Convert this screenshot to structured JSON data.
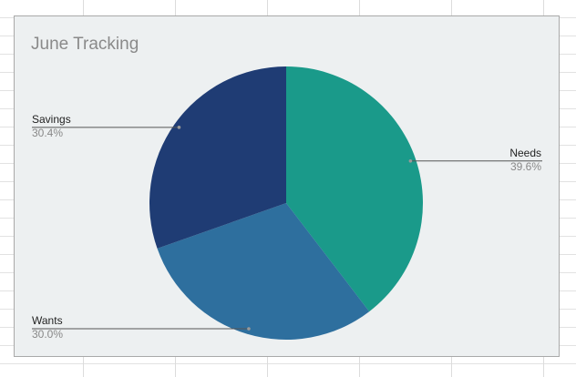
{
  "chart_data": {
    "type": "pie",
    "title": "June Tracking",
    "categories": [
      "Needs",
      "Wants",
      "Savings"
    ],
    "values": [
      39.6,
      30.0,
      30.4
    ],
    "value_labels": [
      "39.6%",
      "30.0%",
      "30.4%"
    ],
    "colors": [
      "#1a9a8a",
      "#2e6f9e",
      "#1f3c74"
    ]
  }
}
